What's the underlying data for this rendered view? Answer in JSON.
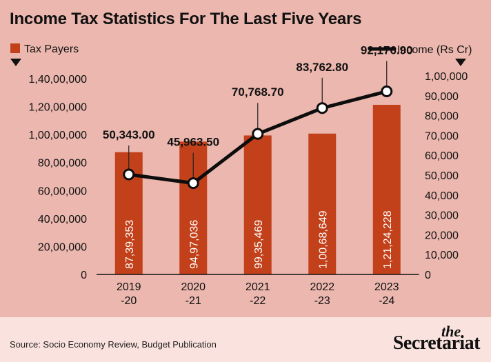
{
  "title": "Income Tax Statistics For The Last Five Years",
  "footer": {
    "source": "Source: Socio Economy Review, Budget Publication",
    "brand_the": "the",
    "brand_name": "Secretariat"
  },
  "colors": {
    "background": "#ebb7ae",
    "footer_background": "#fae2de",
    "bar": "#c2401a",
    "line": "#0d0d0d"
  },
  "chart_data": {
    "type": "bar+line",
    "categories": [
      "2019\n-20",
      "2020\n-21",
      "2021\n-22",
      "2022\n-23",
      "2023\n-24"
    ],
    "series": [
      {
        "name": "Tax Payers",
        "type": "bar",
        "axis": "left",
        "values": [
          8739353,
          9497036,
          9935469,
          10068649,
          12124228
        ],
        "labels": [
          "87,39,353",
          "94,97,036",
          "99,35,469",
          "1,00,68,649",
          "1,21,24,228"
        ]
      },
      {
        "name": "Income (Rs Cr)",
        "type": "line",
        "axis": "right",
        "values": [
          50343.0,
          45963.5,
          70768.7,
          83762.8,
          92176.9
        ],
        "labels": [
          "50,343.00",
          "45,963.50",
          "70,768.70",
          "83,762.80",
          "92,176.90"
        ]
      }
    ],
    "left_axis": {
      "ylim": [
        0,
        14000000
      ],
      "ticks": [
        0,
        2000000,
        4000000,
        6000000,
        8000000,
        10000000,
        12000000,
        14000000
      ],
      "tick_labels": [
        "0",
        "20,00,000",
        "40,00,000",
        "60,00,000",
        "80,00,000",
        "1,00,00,000",
        "1,20,00,000",
        "1,40,00,000"
      ]
    },
    "right_axis": {
      "ylim": [
        0,
        100000
      ],
      "ticks": [
        0,
        10000,
        20000,
        30000,
        40000,
        50000,
        60000,
        70000,
        80000,
        90000,
        100000
      ],
      "tick_labels": [
        "0",
        "10,000",
        "20,000",
        "30,000",
        "40,000",
        "50,000",
        "60,000",
        "70,000",
        "80,000",
        "90,000",
        "1,00,000"
      ]
    },
    "legend": {
      "bar_label": "Tax Payers",
      "line_label": "Income (Rs Cr)",
      "placement": "top"
    },
    "grid": false
  }
}
